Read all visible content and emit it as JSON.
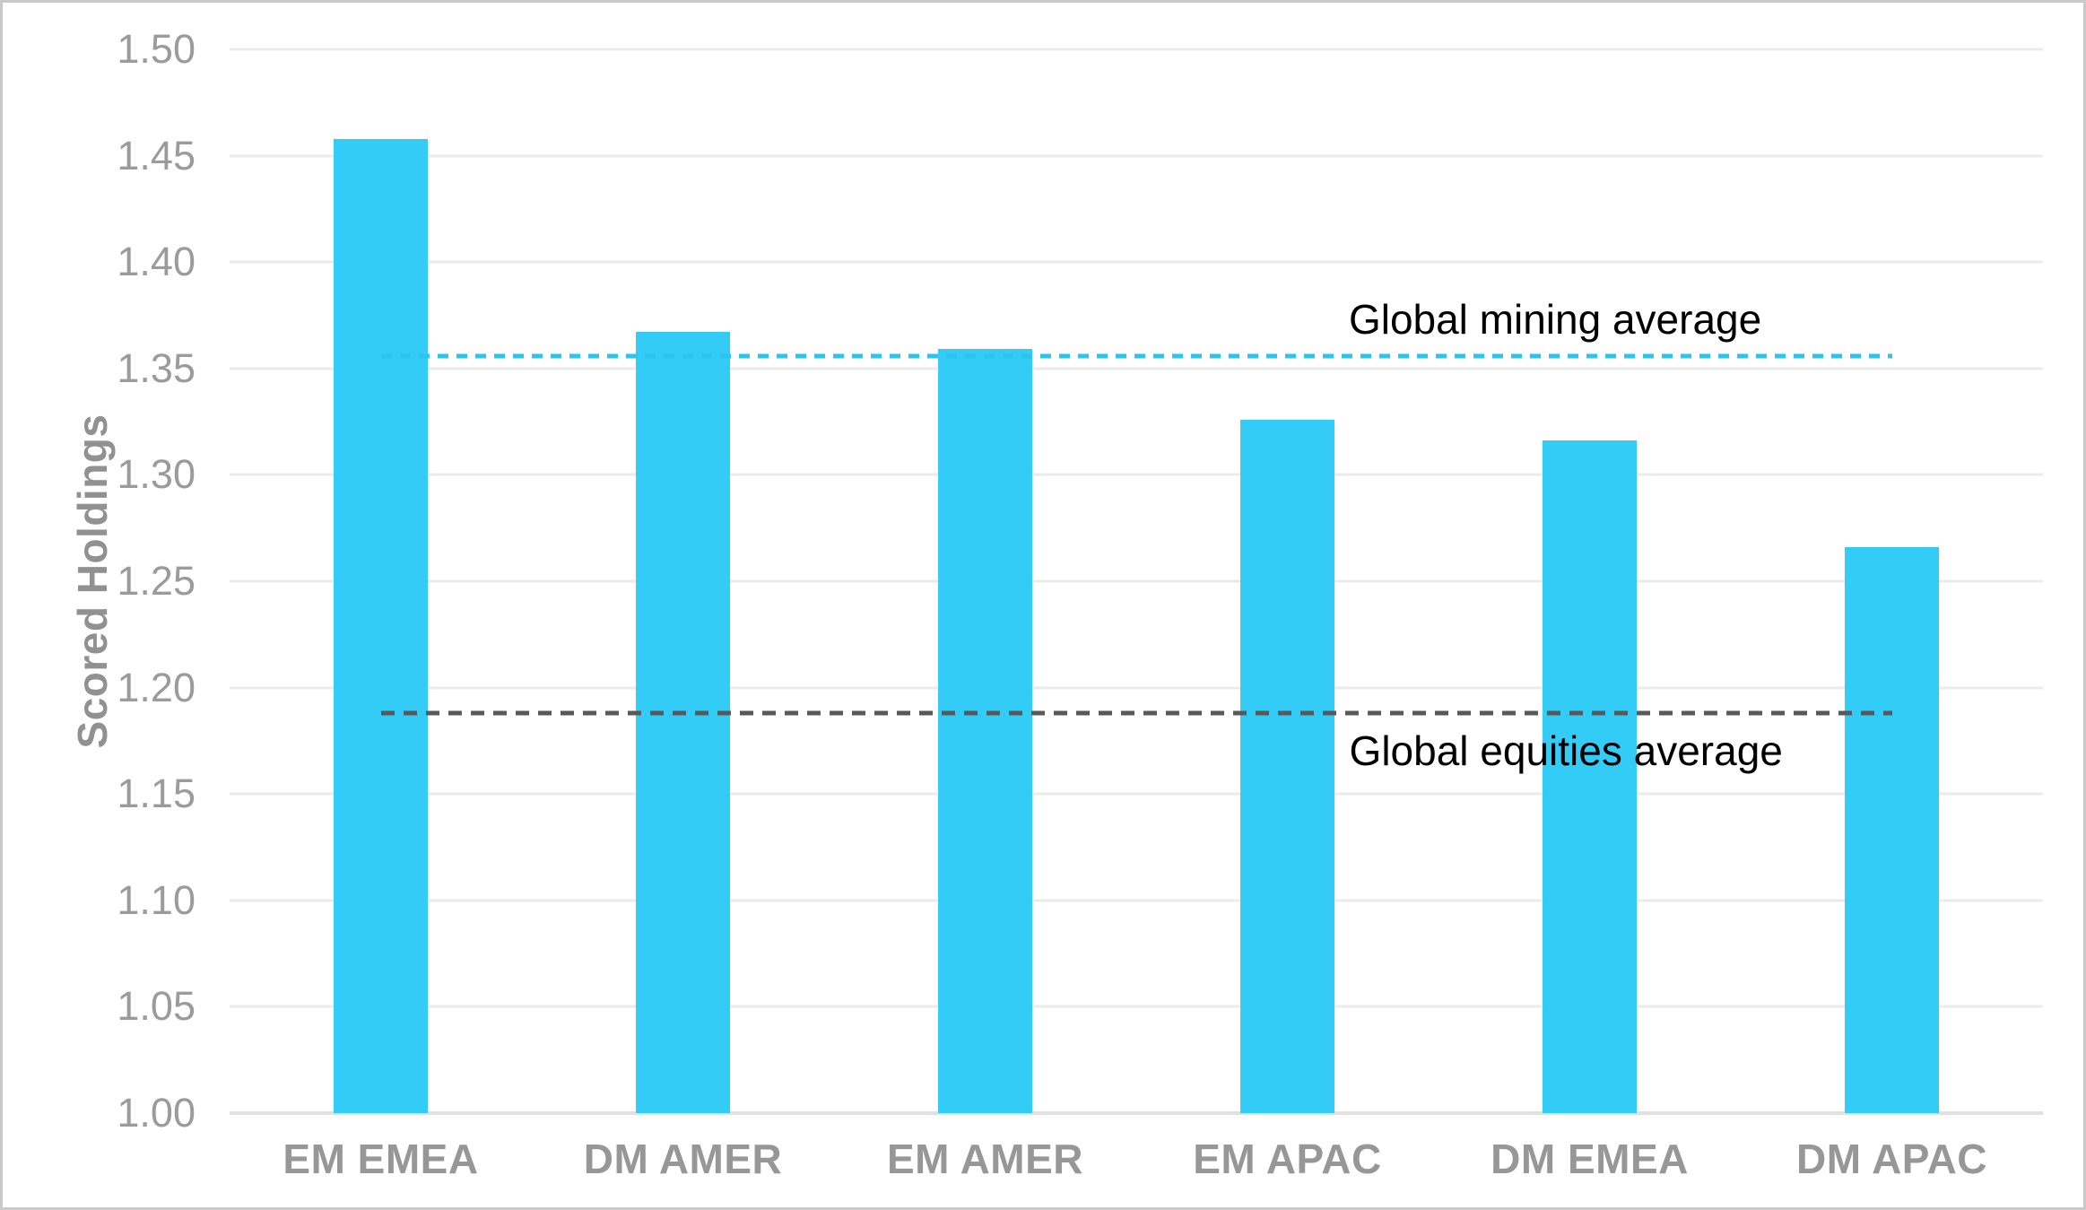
{
  "chart_data": {
    "type": "bar",
    "title": "",
    "xlabel": "",
    "ylabel": "Scored Holdings",
    "categories": [
      "EM EMEA",
      "DM AMER",
      "EM AMER",
      "EM APAC",
      "DM EMEA",
      "DM APAC"
    ],
    "values": [
      1.458,
      1.367,
      1.359,
      1.326,
      1.316,
      1.266
    ],
    "ylim": [
      1.0,
      1.5
    ],
    "yticks": [
      "1.00",
      "1.05",
      "1.10",
      "1.15",
      "1.20",
      "1.25",
      "1.30",
      "1.35",
      "1.40",
      "1.45",
      "1.50"
    ],
    "grid": "horizontal",
    "legend": "none",
    "bar_color": "#32ccf6",
    "reference_lines": [
      {
        "label": "Global mining average",
        "value": 1.356,
        "color": "#2cc4ef",
        "style": "dashed",
        "label_position": "above"
      },
      {
        "label": "Global equities average",
        "value": 1.188,
        "color": "#595959",
        "style": "dashed",
        "label_position": "below"
      }
    ]
  },
  "colors": {
    "background": "#ffffff",
    "frame_border": "#c9c9c9",
    "gridline": "#ebebeb",
    "baseline": "#e0e0e0",
    "tick_label": "#9b9b9b",
    "axis_label": "#979797",
    "axis_title": "#919191",
    "annotation_text": "#000000"
  }
}
